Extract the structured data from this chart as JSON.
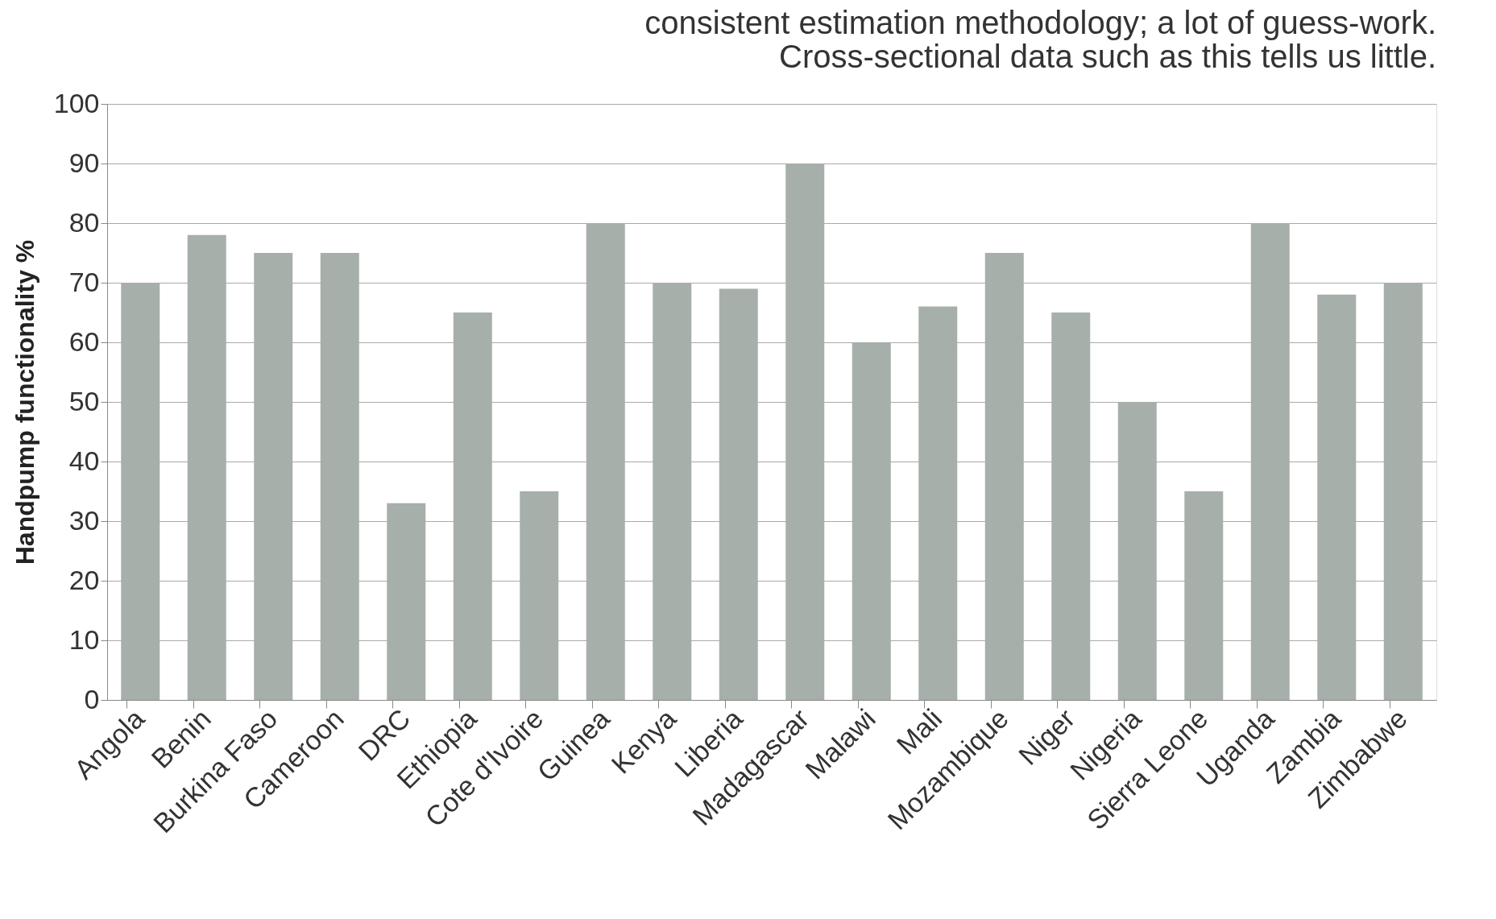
{
  "chart_data": {
    "type": "bar",
    "ylabel": "Handpump functionality %",
    "categories": [
      "Angola",
      "Benin",
      "Burkina Faso",
      "Cameroon",
      "DRC",
      "Ethiopia",
      "Cote d'Ivoire",
      "Guinea",
      "Kenya",
      "Liberia",
      "Madagascar",
      "Malawi",
      "Mali",
      "Mozambique",
      "Niger",
      "Nigeria",
      "Sierra Leone",
      "Uganda",
      "Zambia",
      "Zimbabwe"
    ],
    "values": [
      70,
      78,
      75,
      75,
      33,
      65,
      35,
      80,
      70,
      69,
      90,
      60,
      66,
      75,
      65,
      50,
      35,
      80,
      68,
      70
    ],
    "color": "#a6afa9",
    "ylim": [
      0,
      100
    ],
    "yticks": [
      0,
      10,
      20,
      30,
      40,
      50,
      60,
      70,
      80,
      90,
      100
    ],
    "grid": "y",
    "annotations": [
      "consistent estimation methodology; a lot of guess-work.",
      "Cross-sectional data such as this tells us little."
    ]
  }
}
